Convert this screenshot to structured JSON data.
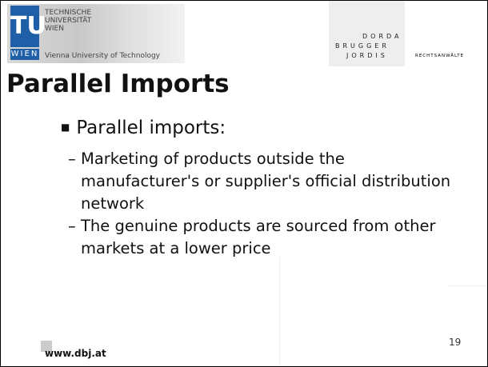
{
  "header": {
    "logo_mark": "TU",
    "logo_city": "WIEN",
    "university_lines": [
      "TECHNISCHE",
      "UNIVERSITÄT",
      "WIEN"
    ],
    "university_english": "Vienna University of Technology",
    "firm_lines": [
      "DORDA",
      "BRUGGER",
      "JORDIS"
    ],
    "firm_suffix": "RECHTSANWÄLTE"
  },
  "slide": {
    "title": "Parallel Imports",
    "bullets": [
      {
        "text": "Parallel imports:",
        "sub_bullets": [
          "Marketing of products outside the manufacturer's or supplier's official distribution network",
          "The genuine products are sourced from other markets at a lower price"
        ]
      }
    ]
  },
  "footer": {
    "website": "www.dbj.at",
    "page_number": "19"
  }
}
